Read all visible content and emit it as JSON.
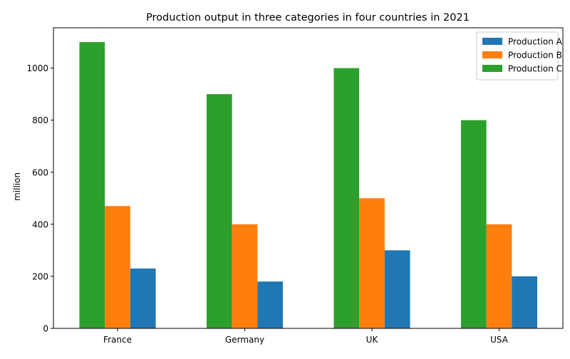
{
  "chart_data": {
    "type": "bar",
    "title": "Production output in three categories in four countries in 2021",
    "xlabel": "",
    "ylabel": "million",
    "categories": [
      "France",
      "Germany",
      "UK",
      "USA"
    ],
    "series": [
      {
        "name": "Production A",
        "values": [
          230,
          180,
          300,
          200
        ],
        "color": "#1f77b4"
      },
      {
        "name": "Production B",
        "values": [
          470,
          400,
          500,
          400
        ],
        "color": "#ff7f0e"
      },
      {
        "name": "Production C",
        "values": [
          1100,
          900,
          1000,
          800
        ],
        "color": "#2ca02c"
      }
    ],
    "bar_draw_order": [
      "Production C",
      "Production B",
      "Production A"
    ],
    "ylim": [
      0,
      1155
    ],
    "yticks": [
      0,
      200,
      400,
      600,
      800,
      1000
    ],
    "grid": false,
    "legend_position": "top-right"
  }
}
